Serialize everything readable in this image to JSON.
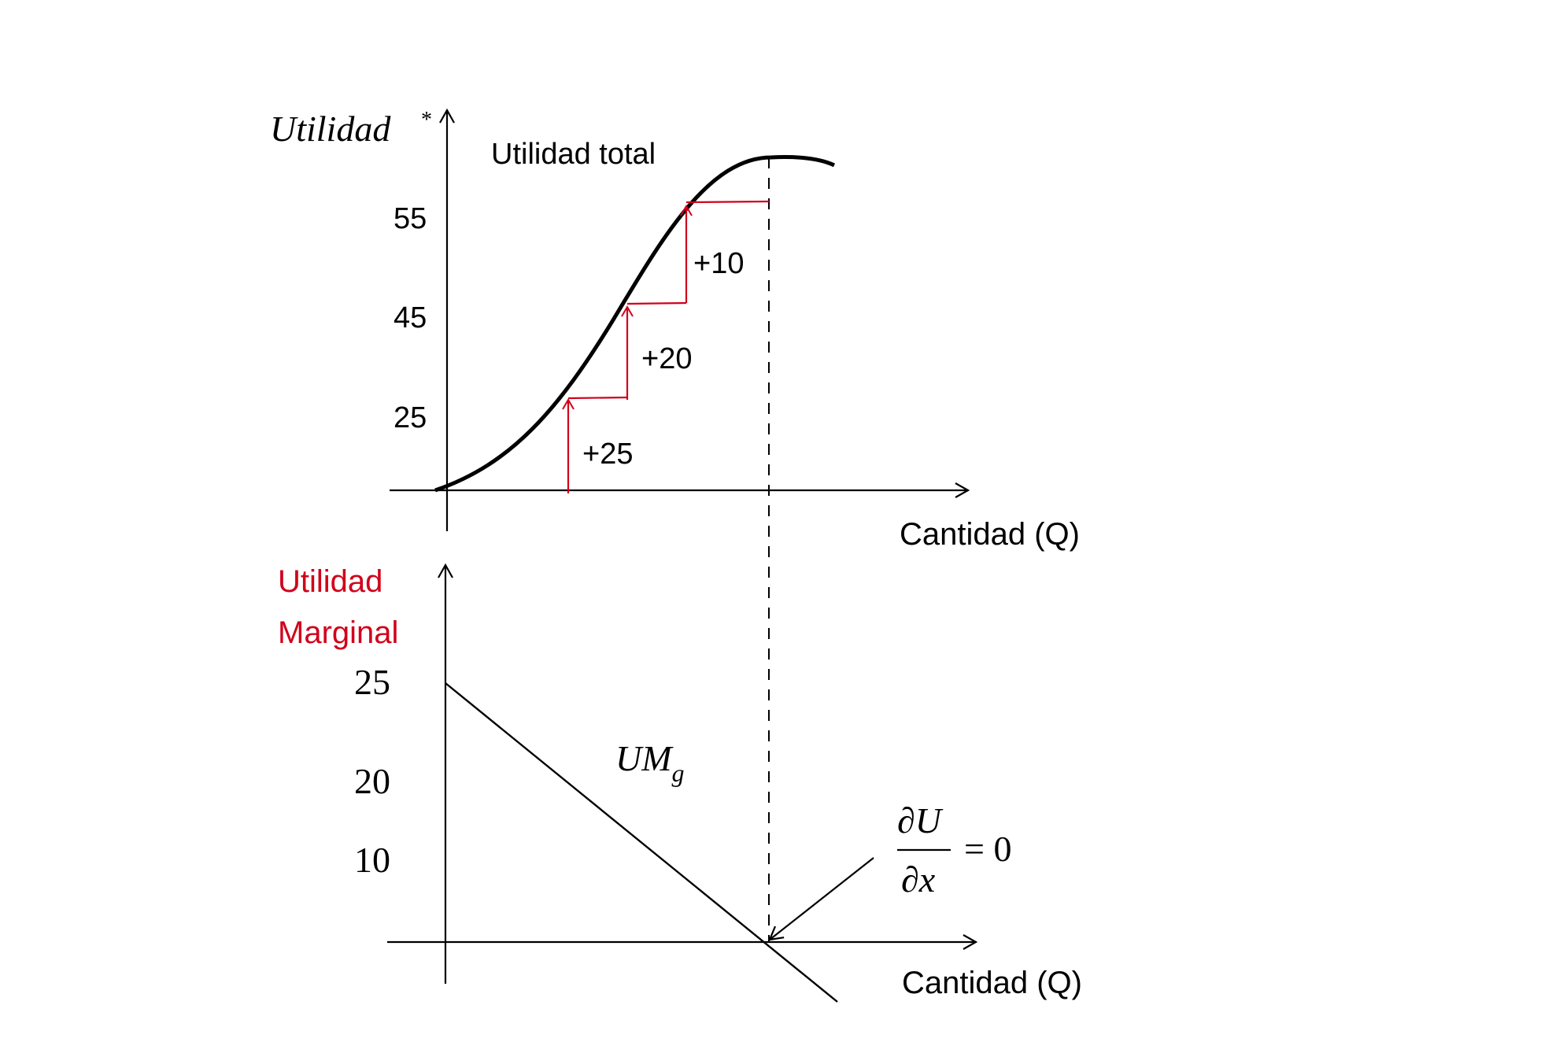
{
  "colors": {
    "ink": "#000000",
    "accent": "#d0021b"
  },
  "top_chart": {
    "ylabel": "Utilidad",
    "ylabel_mark": "*",
    "xlabel": "Cantidad (Q)",
    "curve_label": "Utilidad total",
    "y_ticks": [
      "55",
      "45",
      "25"
    ],
    "increments": [
      "+25",
      "+20",
      "+10"
    ]
  },
  "bottom_chart": {
    "ylabel_line1": "Utilidad",
    "ylabel_line2": "Marginal",
    "xlabel": "Cantidad (Q)",
    "y_ticks": [
      "25",
      "20",
      "10"
    ],
    "curve_label_main": "UM",
    "curve_label_sub": "g",
    "annotation": {
      "numerator": "∂U",
      "denominator": "∂x",
      "equals": "= 0"
    }
  }
}
